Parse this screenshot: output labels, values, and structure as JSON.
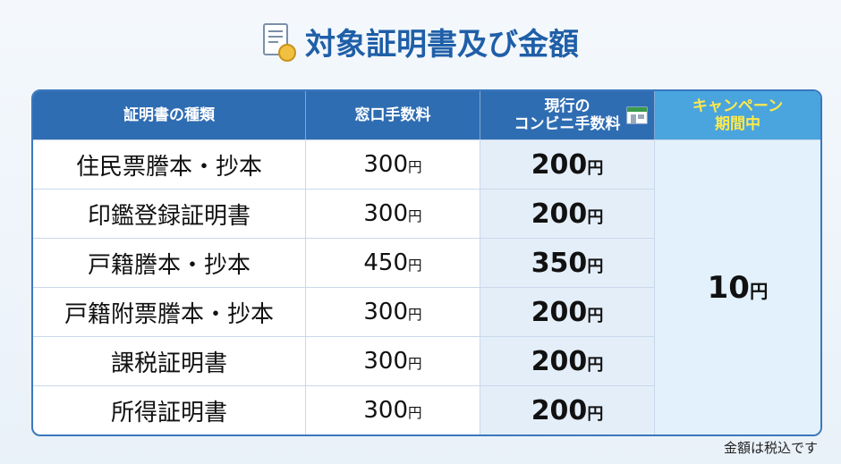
{
  "header": {
    "title": "対象証明書及び金額"
  },
  "table": {
    "columns": [
      [
        "証明書の種類"
      ],
      [
        "窓口手数料"
      ],
      [
        "現行の",
        "コンビニ手数料"
      ],
      [
        "キャンペーン",
        "期間中"
      ]
    ],
    "rows": [
      {
        "name": "住民票謄本・抄本",
        "window": {
          "amount": "300",
          "unit": "円"
        },
        "convenience": {
          "amount": "200",
          "unit": "円"
        }
      },
      {
        "name": "印鑑登録証明書",
        "window": {
          "amount": "300",
          "unit": "円"
        },
        "convenience": {
          "amount": "200",
          "unit": "円"
        }
      },
      {
        "name": "戸籍謄本・抄本",
        "window": {
          "amount": "450",
          "unit": "円"
        },
        "convenience": {
          "amount": "350",
          "unit": "円"
        }
      },
      {
        "name": "戸籍附票謄本・抄本",
        "window": {
          "amount": "300",
          "unit": "円"
        },
        "convenience": {
          "amount": "200",
          "unit": "円"
        }
      },
      {
        "name": "課税証明書",
        "window": {
          "amount": "300",
          "unit": "円"
        },
        "convenience": {
          "amount": "200",
          "unit": "円"
        }
      },
      {
        "name": "所得証明書",
        "window": {
          "amount": "300",
          "unit": "円"
        },
        "convenience": {
          "amount": "200",
          "unit": "円"
        }
      }
    ],
    "campaign": {
      "amount": "10",
      "unit": "円"
    }
  },
  "footnote": "金額は税込です"
}
